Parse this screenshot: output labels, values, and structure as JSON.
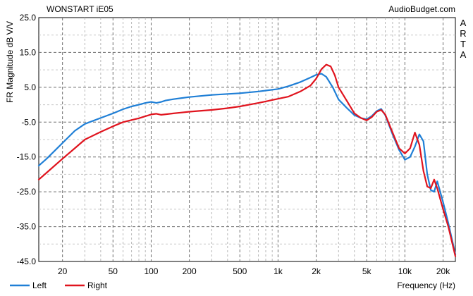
{
  "chart_data": {
    "type": "line",
    "title": "WONSTART iE05",
    "watermark": "AudioBudget.com",
    "side_label": "ARTA",
    "ylabel": "FR Magnitude dB V/V",
    "xlabel": "Frequency (Hz)",
    "x_scale": "log",
    "xlim": [
      13,
      25000
    ],
    "ylim": [
      -45,
      25
    ],
    "y_ticks": [
      25.0,
      15.0,
      5.0,
      -5.0,
      -15.0,
      -25.0,
      -35.0,
      -45.0
    ],
    "y_tick_labels": [
      "25.0",
      "15.0",
      "5.0",
      "-5.0",
      "-15.0",
      "-25.0",
      "-35.0",
      "-45.0"
    ],
    "x_ticks": [
      20,
      50,
      100,
      200,
      500,
      1000,
      2000,
      5000,
      10000,
      20000
    ],
    "x_tick_labels": [
      "20",
      "50",
      "100",
      "200",
      "500",
      "1k",
      "2k",
      "5k",
      "10k",
      "20k"
    ],
    "grid": true,
    "legend_position": "bottom-left",
    "series": [
      {
        "name": "Left",
        "color": "#1f7fd6",
        "x": [
          13,
          15,
          20,
          25,
          30,
          40,
          50,
          60,
          70,
          80,
          90,
          100,
          110,
          120,
          130,
          150,
          200,
          300,
          500,
          700,
          1000,
          1200,
          1500,
          1800,
          2000,
          2200,
          2400,
          2700,
          3000,
          3500,
          4000,
          4500,
          5000,
          5500,
          6000,
          6500,
          7000,
          8000,
          9000,
          10000,
          11000,
          12000,
          13000,
          14000,
          15000,
          16000,
          17000,
          18000,
          20000,
          22000,
          25000
        ],
        "y": [
          -17.5,
          -15.5,
          -11,
          -7.5,
          -5.5,
          -3.8,
          -2.5,
          -1.3,
          -0.5,
          0,
          0.5,
          0.8,
          0.5,
          0.8,
          1.2,
          1.6,
          2.2,
          2.8,
          3.3,
          3.8,
          4.5,
          5.3,
          6.5,
          7.8,
          8.6,
          8.9,
          8.0,
          5.0,
          1.5,
          -1.0,
          -3.0,
          -3.8,
          -4.2,
          -3.2,
          -1.8,
          -1.2,
          -3.0,
          -8.5,
          -13,
          -15.8,
          -15,
          -12,
          -8.5,
          -10.5,
          -20,
          -24.5,
          -25,
          -22,
          -28,
          -34,
          -43
        ]
      },
      {
        "name": "Right",
        "color": "#e0141e",
        "x": [
          13,
          15,
          20,
          25,
          30,
          40,
          50,
          60,
          70,
          80,
          90,
          100,
          110,
          120,
          150,
          200,
          300,
          400,
          500,
          700,
          1000,
          1200,
          1500,
          1800,
          2000,
          2200,
          2400,
          2600,
          2800,
          3000,
          3500,
          4000,
          4500,
          5000,
          5500,
          6000,
          6500,
          7000,
          8000,
          9000,
          10000,
          11000,
          12000,
          13000,
          14000,
          15000,
          16000,
          17000,
          18000,
          20000,
          22000,
          25000
        ],
        "y": [
          -21.5,
          -19.5,
          -15.5,
          -12.5,
          -10,
          -7.8,
          -6.2,
          -5,
          -4.4,
          -3.9,
          -3.3,
          -2.8,
          -2.6,
          -2.9,
          -2.5,
          -2.0,
          -1.5,
          -1.0,
          -0.5,
          0.5,
          1.7,
          2.3,
          3.8,
          5.5,
          7.5,
          10.2,
          11.5,
          11.0,
          8.5,
          5.0,
          1.0,
          -2.5,
          -3.8,
          -4.5,
          -3.5,
          -2.0,
          -1.5,
          -2.8,
          -8,
          -12.5,
          -14,
          -12.5,
          -8,
          -11.5,
          -19,
          -23.5,
          -24,
          -21.5,
          -24,
          -30,
          -35,
          -43.5
        ]
      }
    ]
  }
}
